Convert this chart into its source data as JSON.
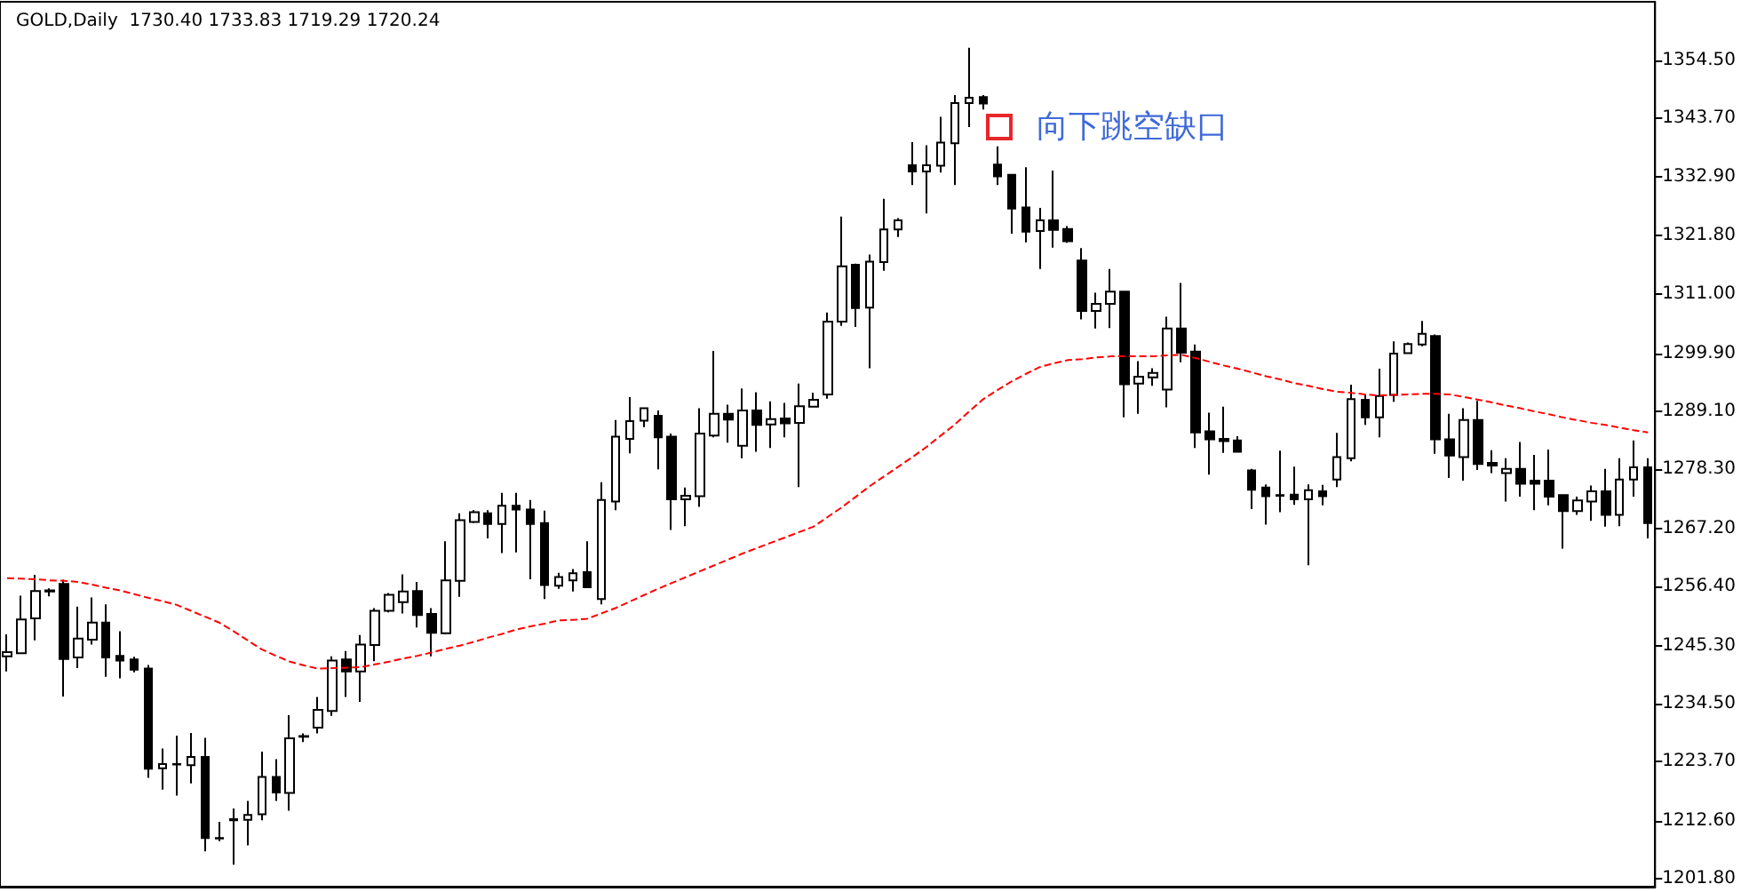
{
  "chart_data": {
    "type": "candlestick",
    "title": "GOLD,Daily  1730.40 1733.83 1719.29 1720.24",
    "color": "#000000",
    "tick_labels": "y",
    "annotations": [
      "向下跳空缺口"
    ],
    "ylim": [
      1200.3,
      1365.5
    ],
    "yticks": [
      {
        "value": 1201.8,
        "label": "1201.80"
      },
      {
        "value": 1212.6,
        "label": "1212.60"
      },
      {
        "value": 1223.7,
        "label": "1223.70"
      },
      {
        "value": 1234.5,
        "label": "1234.50"
      },
      {
        "value": 1245.3,
        "label": "1245.30"
      },
      {
        "value": 1256.4,
        "label": "1256.40"
      },
      {
        "value": 1267.2,
        "label": "1267.20"
      },
      {
        "value": 1278.3,
        "label": "1278.30"
      },
      {
        "value": 1289.1,
        "label": "1289.10"
      },
      {
        "value": 1299.9,
        "label": "1299.90"
      },
      {
        "value": 1311,
        "label": "1311.00"
      },
      {
        "value": 1321.8,
        "label": "1321.80"
      },
      {
        "value": 1332.9,
        "label": "1332.90"
      },
      {
        "value": 1343.7,
        "label": "1343.70"
      },
      {
        "value": 1354.5,
        "label": "1354.50"
      }
    ],
    "categories": [
      null,
      null,
      null,
      null,
      null,
      null,
      null,
      null,
      null,
      null,
      null,
      null,
      null,
      null,
      null,
      null,
      null,
      null,
      null,
      null,
      null,
      null,
      null,
      null,
      null,
      null,
      null,
      null,
      null,
      null,
      null,
      null,
      null,
      null,
      null,
      null,
      null,
      null,
      null,
      null,
      null,
      null,
      null,
      null,
      null,
      null,
      null,
      null,
      null,
      null,
      null,
      null,
      null,
      null,
      null,
      null,
      null,
      null,
      null,
      null,
      null,
      null,
      null,
      null,
      null,
      null,
      null,
      null,
      null,
      null,
      null,
      null,
      null,
      null,
      null,
      null,
      null,
      null,
      null,
      null,
      null,
      null,
      null,
      null,
      null,
      null,
      null,
      null,
      null,
      null,
      null,
      null,
      null,
      null,
      null,
      null,
      null,
      null,
      null,
      null,
      null,
      null,
      null,
      null,
      null,
      null,
      null,
      null,
      null,
      null,
      null,
      null,
      null,
      null,
      null,
      null,
      null
    ],
    "ohlc": [
      [
        1243.3,
        1247.4,
        1240.5,
        1244.1
      ],
      [
        1243.9,
        1254.6,
        1243.9,
        1250.2
      ],
      [
        1250.4,
        1258.5,
        1246.3,
        1255.5
      ],
      [
        1255.6,
        1256.0,
        1254.5,
        1255.4
      ],
      [
        1256.8,
        1257.6,
        1235.8,
        1242.8
      ],
      [
        1243.1,
        1252.6,
        1241.1,
        1246.6
      ],
      [
        1246.4,
        1254.3,
        1245.5,
        1249.6
      ],
      [
        1249.6,
        1253.0,
        1239.5,
        1243.1
      ],
      [
        1243.4,
        1248.0,
        1239.2,
        1242.5
      ],
      [
        1242.7,
        1243.2,
        1240.3,
        1240.8
      ],
      [
        1241.0,
        1241.7,
        1220.6,
        1222.3
      ],
      [
        1222.4,
        1226.1,
        1218.4,
        1223.2
      ],
      [
        1223.1,
        1228.5,
        1217.3,
        1223.2
      ],
      [
        1223.0,
        1229.0,
        1219.6,
        1224.5
      ],
      [
        1224.5,
        1228.1,
        1206.9,
        1209.4
      ],
      [
        1209.3,
        1212.4,
        1208.8,
        1209.4
      ],
      [
        1212.7,
        1214.9,
        1204.4,
        1212.9
      ],
      [
        1212.8,
        1216.3,
        1208.0,
        1213.7
      ],
      [
        1213.8,
        1225.5,
        1212.7,
        1220.8
      ],
      [
        1220.8,
        1224.1,
        1216.3,
        1217.9
      ],
      [
        1217.8,
        1232.3,
        1214.5,
        1228.0
      ],
      [
        1228.3,
        1228.9,
        1227.3,
        1228.4
      ],
      [
        1230.0,
        1235.7,
        1228.9,
        1233.3
      ],
      [
        1233.1,
        1243.3,
        1232.2,
        1242.5
      ],
      [
        1242.7,
        1244.3,
        1235.7,
        1240.5
      ],
      [
        1240.5,
        1247.3,
        1234.8,
        1245.5
      ],
      [
        1245.4,
        1252.3,
        1242.4,
        1251.8
      ],
      [
        1251.8,
        1255.1,
        1251.5,
        1254.8
      ],
      [
        1253.4,
        1258.6,
        1251.3,
        1255.4
      ],
      [
        1255.5,
        1257.2,
        1248.7,
        1251.0
      ],
      [
        1251.2,
        1252.3,
        1243.3,
        1247.7
      ],
      [
        1247.6,
        1264.8,
        1247.4,
        1257.5
      ],
      [
        1257.4,
        1270.0,
        1254.4,
        1268.7
      ],
      [
        1268.4,
        1270.6,
        1268.2,
        1270.2
      ],
      [
        1270.0,
        1270.6,
        1265.3,
        1268.0
      ],
      [
        1268.0,
        1273.8,
        1262.6,
        1271.4
      ],
      [
        1271.4,
        1273.8,
        1262.7,
        1270.7
      ],
      [
        1270.7,
        1272.5,
        1257.7,
        1268.0
      ],
      [
        1268.2,
        1270.5,
        1254.0,
        1256.6
      ],
      [
        1256.5,
        1258.9,
        1255.9,
        1258.1
      ],
      [
        1257.5,
        1259.6,
        1255.4,
        1258.8
      ],
      [
        1259.0,
        1264.8,
        1256.2,
        1256.2
      ],
      [
        1254.0,
        1275.8,
        1253.0,
        1272.5
      ],
      [
        1272.2,
        1287.4,
        1270.6,
        1284.3
      ],
      [
        1283.9,
        1291.7,
        1281.2,
        1287.2
      ],
      [
        1287.3,
        1289.6,
        1286.1,
        1289.6
      ],
      [
        1288.2,
        1289.2,
        1278.2,
        1284.2
      ],
      [
        1284.3,
        1284.9,
        1266.9,
        1272.6
      ],
      [
        1272.6,
        1274.8,
        1267.6,
        1273.3
      ],
      [
        1273.2,
        1289.6,
        1271.2,
        1284.9
      ],
      [
        1284.5,
        1300.3,
        1284.2,
        1288.6
      ],
      [
        1288.6,
        1290.3,
        1283.2,
        1287.5
      ],
      [
        1282.6,
        1293.3,
        1280.3,
        1289.2
      ],
      [
        1289.2,
        1292.6,
        1281.5,
        1286.5
      ],
      [
        1286.6,
        1290.9,
        1282.2,
        1287.6
      ],
      [
        1287.7,
        1290.6,
        1284.2,
        1286.8
      ],
      [
        1286.9,
        1294.2,
        1274.9,
        1290.0
      ],
      [
        1289.9,
        1292.5,
        1289.9,
        1291.2
      ],
      [
        1292.2,
        1307.5,
        1291.4,
        1305.8
      ],
      [
        1305.8,
        1325.4,
        1305.0,
        1316.1
      ],
      [
        1316.4,
        1316.6,
        1304.8,
        1308.3
      ],
      [
        1308.4,
        1318.3,
        1297.1,
        1317.0
      ],
      [
        1316.9,
        1328.7,
        1315.3,
        1323.0
      ],
      [
        1323.0,
        1325.1,
        1321.6,
        1324.7
      ],
      [
        1335.0,
        1339.3,
        1331.3,
        1333.8
      ],
      [
        1333.8,
        1338.7,
        1326.0,
        1335.0
      ],
      [
        1334.9,
        1344.0,
        1333.6,
        1339.2
      ],
      [
        1339.1,
        1348.1,
        1331.3,
        1346.6
      ],
      [
        1346.6,
        1356.9,
        1342.1,
        1347.6
      ],
      [
        1347.7,
        1348.1,
        1345.4,
        1346.5
      ],
      [
        1335.1,
        1338.5,
        1331.3,
        1332.9
      ],
      [
        1333.2,
        1333.2,
        1322.2,
        1326.9
      ],
      [
        1327.1,
        1334.6,
        1320.6,
        1322.6
      ],
      [
        1322.7,
        1327.0,
        1315.6,
        1324.7
      ],
      [
        1324.7,
        1334.0,
        1319.6,
        1322.9
      ],
      [
        1323.1,
        1323.6,
        1320.5,
        1320.8
      ],
      [
        1317.2,
        1319.5,
        1306.2,
        1307.8
      ],
      [
        1307.8,
        1311.2,
        1304.5,
        1309.1
      ],
      [
        1309.1,
        1315.6,
        1304.6,
        1311.4
      ],
      [
        1311.4,
        1311.4,
        1287.9,
        1294.1
      ],
      [
        1294.2,
        1298.4,
        1288.6,
        1295.5
      ],
      [
        1295.4,
        1297.1,
        1293.8,
        1296.2
      ],
      [
        1293.1,
        1306.7,
        1289.8,
        1304.5
      ],
      [
        1304.5,
        1313.0,
        1298.2,
        1300.0
      ],
      [
        1300.2,
        1301.5,
        1282.2,
        1285.1
      ],
      [
        1285.3,
        1288.8,
        1277.2,
        1283.8
      ],
      [
        1283.9,
        1289.9,
        1281.3,
        1283.5
      ],
      [
        1283.6,
        1284.4,
        1281.5,
        1281.5
      ],
      [
        1278.0,
        1278.3,
        1270.8,
        1274.4
      ],
      [
        1274.8,
        1275.4,
        1267.9,
        1273.2
      ],
      [
        1273.4,
        1281.7,
        1270.2,
        1273.3
      ],
      [
        1273.5,
        1278.7,
        1271.6,
        1272.6
      ],
      [
        1272.6,
        1275.4,
        1260.3,
        1274.3
      ],
      [
        1274.1,
        1275.3,
        1271.5,
        1273.2
      ],
      [
        1276.3,
        1285.0,
        1274.9,
        1280.5
      ],
      [
        1280.3,
        1294.0,
        1279.7,
        1291.3
      ],
      [
        1291.2,
        1292.2,
        1286.5,
        1287.9
      ],
      [
        1287.9,
        1297.0,
        1284.2,
        1291.9
      ],
      [
        1292.1,
        1302.1,
        1290.8,
        1299.8
      ],
      [
        1299.9,
        1301.9,
        1299.8,
        1301.6
      ],
      [
        1301.5,
        1305.9,
        1301.2,
        1303.5
      ],
      [
        1303.1,
        1303.4,
        1281.1,
        1283.8
      ],
      [
        1283.8,
        1288.6,
        1276.6,
        1280.8
      ],
      [
        1280.5,
        1289.6,
        1276.1,
        1287.4
      ],
      [
        1287.4,
        1291.0,
        1278.1,
        1279.2
      ],
      [
        1279.4,
        1281.8,
        1277.5,
        1278.9
      ],
      [
        1277.5,
        1280.3,
        1272.2,
        1278.3
      ],
      [
        1278.3,
        1283.3,
        1273.1,
        1275.5
      ],
      [
        1276.1,
        1280.9,
        1270.6,
        1275.5
      ],
      [
        1276.1,
        1281.9,
        1271.5,
        1273.1
      ],
      [
        1273.4,
        1273.4,
        1263.4,
        1270.4
      ],
      [
        1270.4,
        1273.1,
        1269.7,
        1272.4
      ],
      [
        1272.2,
        1275.2,
        1268.6,
        1274.1
      ],
      [
        1274.1,
        1278.3,
        1267.5,
        1269.7
      ],
      [
        1269.7,
        1280.3,
        1267.6,
        1276.3
      ],
      [
        1276.3,
        1283.6,
        1273.1,
        1278.6
      ],
      [
        1278.6,
        1280.3,
        1265.3,
        1268.2
      ]
    ],
    "series": [
      {
        "type": "line",
        "color": "#ff0000",
        "line_style": "dashed",
        "values": [
          1257.9,
          1257.8,
          1257.7,
          1257.5,
          1257.4,
          1257.2,
          1256.7,
          1256.1,
          1255.6,
          1254.9,
          1254.2,
          1253.6,
          1252.9,
          1251.8,
          1250.7,
          1249.6,
          1248.0,
          1246.3,
          1244.6,
          1243.4,
          1242.3,
          1241.6,
          1241.0,
          1241.1,
          1241.2,
          1241.3,
          1241.8,
          1242.3,
          1242.9,
          1243.4,
          1244.0,
          1244.7,
          1245.3,
          1246.0,
          1246.8,
          1247.5,
          1248.3,
          1248.9,
          1249.4,
          1250.0,
          1250.1,
          1250.3,
          1251.3,
          1252.3,
          1253.5,
          1254.7,
          1255.9,
          1257.0,
          1258.1,
          1259.2,
          1260.3,
          1261.4,
          1262.5,
          1263.5,
          1264.5,
          1265.5,
          1266.5,
          1267.5,
          1269.3,
          1271.1,
          1273.1,
          1275.1,
          1276.9,
          1278.7,
          1280.5,
          1282.4,
          1284.5,
          1286.6,
          1289.0,
          1291.3,
          1293.0,
          1294.6,
          1296.0,
          1297.3,
          1298.0,
          1298.6,
          1298.8,
          1299.1,
          1299.3,
          1299.3,
          1299.3,
          1299.3,
          1299.5,
          1299.6,
          1299.0,
          1298.3,
          1297.6,
          1297.0,
          1296.3,
          1295.6,
          1295.0,
          1294.3,
          1293.8,
          1293.2,
          1292.7,
          1292.5,
          1292.2,
          1292.0,
          1292.1,
          1292.2,
          1292.3,
          1292.3,
          1292.2,
          1291.7,
          1291.2,
          1290.7,
          1290.1,
          1289.6,
          1289.0,
          1288.5,
          1287.9,
          1287.4,
          1286.9,
          1286.5,
          1286.0,
          1285.5,
          1285.1
        ]
      }
    ]
  }
}
